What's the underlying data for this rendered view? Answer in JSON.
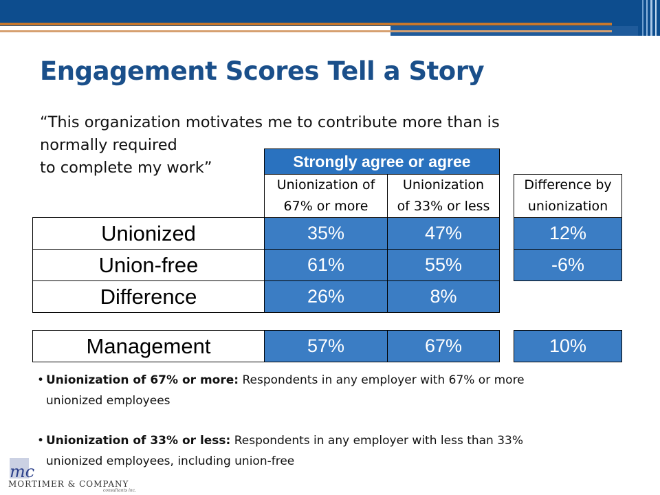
{
  "slide": {
    "title": "Engagement Scores Tell a Story",
    "quote_lines": [
      "“This organization motivates me to contribute more than is",
      "normally required",
      "to complete my work”"
    ]
  },
  "table": {
    "group_header": "Strongly agree or agree",
    "col_headers": [
      "Unionization of 67% or more",
      "Unionization of 33% or less"
    ],
    "col_header_lines": [
      [
        "Unionization of",
        "67% or more"
      ],
      [
        "Unionization",
        "of 33% or less"
      ]
    ],
    "diff_header_lines": [
      "Difference by",
      "unionization"
    ],
    "rows": [
      {
        "label": "Unionized",
        "v1": "35%",
        "v2": "47%",
        "diff": "12%"
      },
      {
        "label": "Union-free",
        "v1": "61%",
        "v2": "55%",
        "diff": "-6%"
      },
      {
        "label": "Difference",
        "v1": "26%",
        "v2": "8%",
        "diff": ""
      }
    ],
    "management": {
      "label": "Management",
      "v1": "57%",
      "v2": "67%",
      "diff": "10%"
    }
  },
  "colors": {
    "title": "#1a4f8a",
    "cell_fill": "#3b7dc4",
    "banner": "#0d4d8e",
    "accent": "#c8782c"
  },
  "notes": [
    {
      "bold": "Unionization of 67% or more:",
      "text": " Respondents in any employer with 67% or more",
      "line2": "unionized employees"
    },
    {
      "bold": "Unionization of 33% or less:",
      "text": " Respondents in any employer with less than 33%",
      "line2": "unionized employees, including union-free"
    }
  ],
  "logo": {
    "text": "MORTIMER & COMPANY",
    "sub": "consultants inc.",
    "mark": "mc"
  }
}
